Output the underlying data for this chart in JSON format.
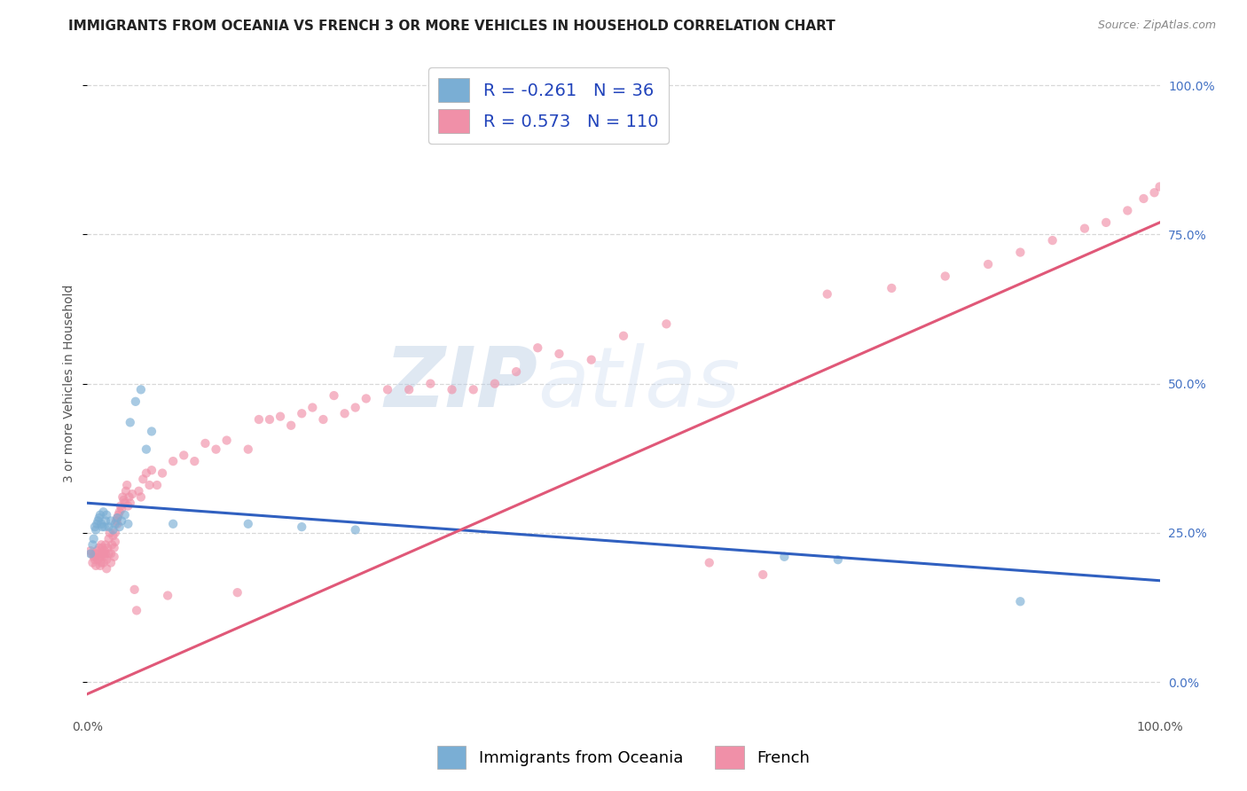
{
  "title": "IMMIGRANTS FROM OCEANIA VS FRENCH 3 OR MORE VEHICLES IN HOUSEHOLD CORRELATION CHART",
  "source": "Source: ZipAtlas.com",
  "ylabel": "3 or more Vehicles in Household",
  "ytick_values": [
    0.0,
    0.25,
    0.5,
    0.75,
    1.0
  ],
  "xlim": [
    0.0,
    1.0
  ],
  "ylim": [
    -0.05,
    1.05
  ],
  "legend_entries": [
    {
      "label": "Immigrants from Oceania",
      "color": "#a8c4e0",
      "R": "-0.261",
      "N": "36"
    },
    {
      "label": "French",
      "color": "#f4a7b9",
      "R": "0.573",
      "N": "110"
    }
  ],
  "blue_scatter_x": [
    0.003,
    0.005,
    0.006,
    0.007,
    0.008,
    0.009,
    0.01,
    0.011,
    0.012,
    0.013,
    0.014,
    0.015,
    0.016,
    0.017,
    0.018,
    0.02,
    0.022,
    0.024,
    0.026,
    0.028,
    0.03,
    0.032,
    0.035,
    0.038,
    0.04,
    0.045,
    0.05,
    0.055,
    0.06,
    0.08,
    0.15,
    0.2,
    0.25,
    0.65,
    0.7,
    0.87
  ],
  "blue_scatter_y": [
    0.215,
    0.23,
    0.24,
    0.26,
    0.255,
    0.265,
    0.27,
    0.275,
    0.28,
    0.265,
    0.26,
    0.285,
    0.26,
    0.27,
    0.28,
    0.26,
    0.27,
    0.255,
    0.265,
    0.275,
    0.26,
    0.27,
    0.28,
    0.265,
    0.435,
    0.47,
    0.49,
    0.39,
    0.42,
    0.265,
    0.265,
    0.26,
    0.255,
    0.21,
    0.205,
    0.135
  ],
  "pink_scatter_x": [
    0.003,
    0.004,
    0.005,
    0.006,
    0.007,
    0.007,
    0.008,
    0.008,
    0.009,
    0.01,
    0.01,
    0.011,
    0.012,
    0.012,
    0.013,
    0.013,
    0.014,
    0.014,
    0.015,
    0.015,
    0.016,
    0.016,
    0.017,
    0.017,
    0.018,
    0.018,
    0.019,
    0.02,
    0.02,
    0.021,
    0.022,
    0.022,
    0.023,
    0.024,
    0.025,
    0.025,
    0.026,
    0.026,
    0.027,
    0.028,
    0.028,
    0.029,
    0.03,
    0.031,
    0.032,
    0.033,
    0.034,
    0.035,
    0.036,
    0.037,
    0.038,
    0.039,
    0.04,
    0.042,
    0.044,
    0.046,
    0.048,
    0.05,
    0.052,
    0.055,
    0.058,
    0.06,
    0.065,
    0.07,
    0.075,
    0.08,
    0.09,
    0.1,
    0.11,
    0.12,
    0.13,
    0.14,
    0.15,
    0.16,
    0.17,
    0.18,
    0.19,
    0.2,
    0.21,
    0.22,
    0.23,
    0.24,
    0.25,
    0.26,
    0.28,
    0.3,
    0.32,
    0.34,
    0.36,
    0.38,
    0.4,
    0.42,
    0.44,
    0.47,
    0.5,
    0.54,
    0.58,
    0.63,
    0.69,
    0.75,
    0.8,
    0.84,
    0.87,
    0.9,
    0.93,
    0.95,
    0.97,
    0.985,
    0.995,
    1.0
  ],
  "pink_scatter_y": [
    0.22,
    0.215,
    0.2,
    0.21,
    0.205,
    0.215,
    0.21,
    0.195,
    0.22,
    0.205,
    0.215,
    0.225,
    0.195,
    0.21,
    0.2,
    0.23,
    0.215,
    0.225,
    0.2,
    0.215,
    0.21,
    0.22,
    0.215,
    0.23,
    0.19,
    0.205,
    0.225,
    0.215,
    0.24,
    0.25,
    0.2,
    0.215,
    0.23,
    0.245,
    0.21,
    0.225,
    0.235,
    0.25,
    0.27,
    0.265,
    0.275,
    0.28,
    0.285,
    0.295,
    0.29,
    0.31,
    0.305,
    0.3,
    0.32,
    0.33,
    0.295,
    0.31,
    0.3,
    0.315,
    0.155,
    0.12,
    0.32,
    0.31,
    0.34,
    0.35,
    0.33,
    0.355,
    0.33,
    0.35,
    0.145,
    0.37,
    0.38,
    0.37,
    0.4,
    0.39,
    0.405,
    0.15,
    0.39,
    0.44,
    0.44,
    0.445,
    0.43,
    0.45,
    0.46,
    0.44,
    0.48,
    0.45,
    0.46,
    0.475,
    0.49,
    0.49,
    0.5,
    0.49,
    0.49,
    0.5,
    0.52,
    0.56,
    0.55,
    0.54,
    0.58,
    0.6,
    0.2,
    0.18,
    0.65,
    0.66,
    0.68,
    0.7,
    0.72,
    0.74,
    0.76,
    0.77,
    0.79,
    0.81,
    0.82,
    0.83
  ],
  "blue_line_x": [
    0.0,
    1.0
  ],
  "blue_line_y": [
    0.3,
    0.17
  ],
  "pink_line_x": [
    0.0,
    1.0
  ],
  "pink_line_y": [
    -0.02,
    0.77
  ],
  "watermark_zip": "ZIP",
  "watermark_atlas": "atlas",
  "scatter_size": 55,
  "scatter_alpha": 0.65,
  "line_width": 2.2,
  "blue_color": "#7aaed4",
  "pink_color": "#f090a8",
  "blue_line_color": "#3060c0",
  "pink_line_color": "#e05878",
  "grid_color": "#c8c8c8",
  "grid_linestyle": "--",
  "grid_alpha": 0.7,
  "background_color": "#ffffff",
  "title_fontsize": 11,
  "ylabel_fontsize": 10,
  "tick_fontsize": 10,
  "legend_fontsize": 14,
  "right_tick_color": "#4472C4"
}
